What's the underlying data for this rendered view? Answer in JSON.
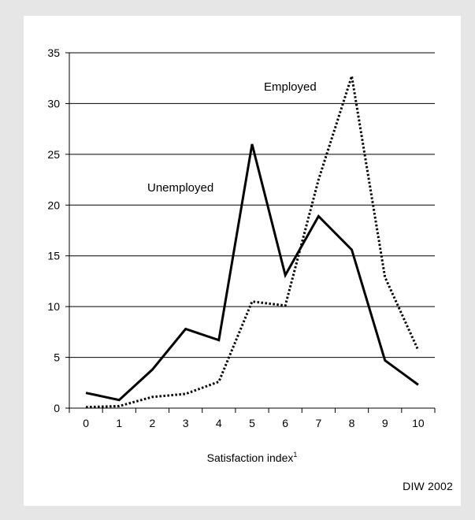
{
  "chart_data": {
    "type": "line",
    "title": "",
    "xlabel": "Satisfaction index",
    "xlabel_superscript": "1",
    "ylabel": "",
    "x": [
      0,
      1,
      2,
      3,
      4,
      5,
      6,
      7,
      8,
      9,
      10
    ],
    "xlim": [
      0,
      10
    ],
    "ylim": [
      0,
      35
    ],
    "yticks": [
      0,
      5,
      10,
      15,
      20,
      25,
      30,
      35
    ],
    "grid": "horizontal",
    "series": [
      {
        "name": "Unemployed",
        "style": "solid",
        "color": "#000000",
        "values": [
          1.5,
          0.8,
          3.8,
          7.8,
          6.7,
          26.0,
          13.1,
          18.9,
          15.6,
          4.7,
          2.3
        ]
      },
      {
        "name": "Employed",
        "style": "dotted",
        "color": "#000000",
        "values": [
          0.1,
          0.2,
          1.1,
          1.4,
          2.6,
          10.5,
          10.1,
          22.5,
          32.7,
          12.9,
          5.7
        ]
      }
    ],
    "source": "DIW 2002"
  }
}
